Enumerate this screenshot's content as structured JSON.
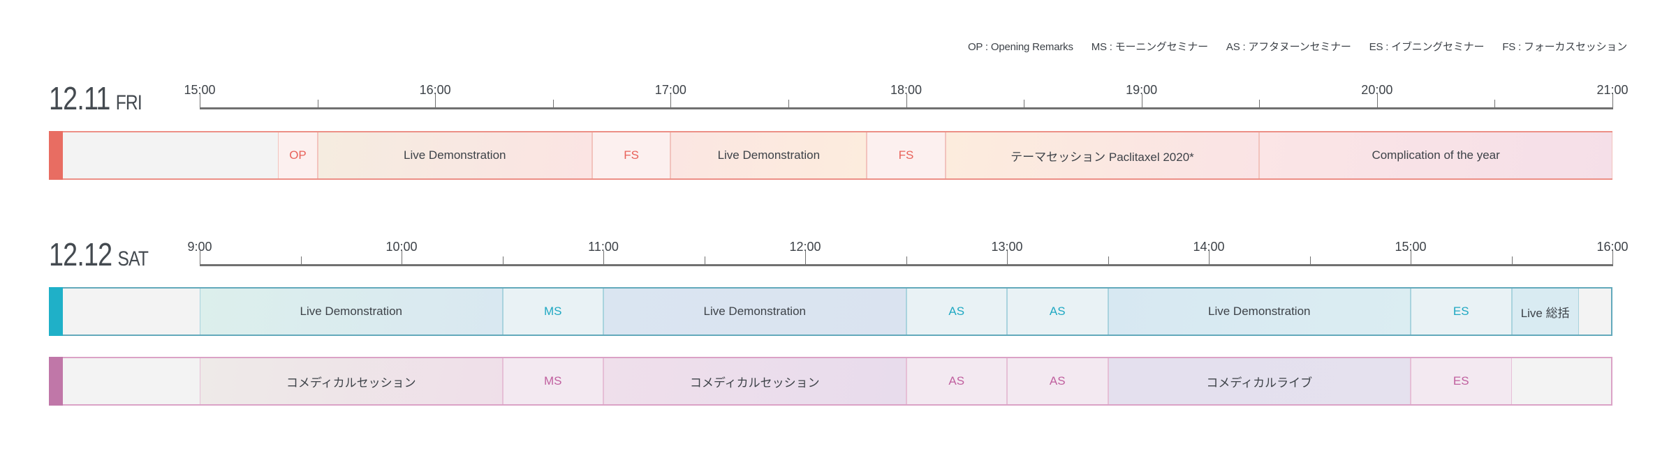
{
  "legend": [
    "OP : Opening Remarks",
    "MS : モーニングセミナー",
    "AS : アフタヌーンセミナー",
    "ES : イブニングセミナー",
    "FS : フォーカスセッション"
  ],
  "days": [
    {
      "date": "12.11",
      "weekday": "FRI",
      "axis": {
        "start": "15:00",
        "end": "21:00",
        "labels": [
          "15:00",
          "16:00",
          "17:00",
          "18:00",
          "19:00",
          "20:00",
          "21:00"
        ]
      },
      "rows": [
        {
          "color": "#e86d62",
          "border": "#ec8f86",
          "sep": "#f2c3bd",
          "abbr_color": "#e8625a",
          "segments": [
            {
              "start": "15:20",
              "end": "15:30",
              "label": "OP",
              "abbr": true,
              "bg": "#fcf0ef"
            },
            {
              "start": "15:30",
              "end": "16:40",
              "label": "Live Demonstration",
              "bg": "linear-gradient(100deg,#f5ece0,#fbe4e3)"
            },
            {
              "start": "16:40",
              "end": "17:00",
              "label": "FS",
              "abbr": true,
              "bg": "#fcf0ef"
            },
            {
              "start": "17:00",
              "end": "17:50",
              "label": "Live Demonstration",
              "bg": "linear-gradient(100deg,#fbe6e2,#fcecdd)"
            },
            {
              "start": "17:50",
              "end": "18:10",
              "label": "FS",
              "abbr": true,
              "bg": "#fcf0ef"
            },
            {
              "start": "18:10",
              "end": "19:30",
              "label": "テーマセッション Paclitaxel 2020*",
              "bg": "linear-gradient(100deg,#fcecdd,#fae3e5)"
            },
            {
              "start": "19:30",
              "end": "21:00",
              "label": "Complication of the year",
              "bg": "linear-gradient(100deg,#fbe5e6,#f5dfe8)"
            }
          ]
        }
      ]
    },
    {
      "date": "12.12",
      "weekday": "SAT",
      "axis": {
        "start": "9:00",
        "end": "16:00",
        "labels": [
          "9:00",
          "10:00",
          "11:00",
          "12:00",
          "13:00",
          "14:00",
          "15:00",
          "16:00"
        ]
      },
      "rows": [
        {
          "color": "#1fb0c8",
          "border": "#62a9bb",
          "sep": "#a9d3de",
          "abbr_color": "#1fa8c2",
          "segments": [
            {
              "start": "9:00",
              "end": "10:30",
              "label": "Live Demonstration",
              "bg": "linear-gradient(100deg,#dcefec,#d9e8f1)"
            },
            {
              "start": "10:30",
              "end": "11:00",
              "label": "MS",
              "abbr": true,
              "bg": "#e9f2f5"
            },
            {
              "start": "11:00",
              "end": "12:30",
              "label": "Live Demonstration",
              "bg": "linear-gradient(100deg,#dae5f1,#dae3f0)"
            },
            {
              "start": "12:30",
              "end": "13:00",
              "label": "AS",
              "abbr": true,
              "bg": "#e9f2f5"
            },
            {
              "start": "13:00",
              "end": "13:30",
              "label": "AS",
              "abbr": true,
              "bg": "#e9f2f5"
            },
            {
              "start": "13:30",
              "end": "15:00",
              "label": "Live Demonstration",
              "bg": "linear-gradient(100deg,#d7e8f2,#dbedf2)"
            },
            {
              "start": "15:00",
              "end": "15:30",
              "label": "ES",
              "abbr": true,
              "bg": "#e9f2f5"
            },
            {
              "start": "15:30",
              "end": "15:50",
              "label": "Live 総括",
              "bg": "#d9ebf2"
            }
          ]
        },
        {
          "color": "#c077a8",
          "border": "#dba2c6",
          "sep": "#e6bfd6",
          "abbr_color": "#c0609f",
          "segments": [
            {
              "start": "9:00",
              "end": "10:30",
              "label": "コメディカルセッション",
              "bg": "linear-gradient(100deg,#eeeae8,#efdfe9)"
            },
            {
              "start": "10:30",
              "end": "11:00",
              "label": "MS",
              "abbr": true,
              "bg": "#f3e9f1"
            },
            {
              "start": "11:00",
              "end": "12:30",
              "label": "コメディカルセッション",
              "bg": "linear-gradient(100deg,#efdfeb,#e8dcec)"
            },
            {
              "start": "12:30",
              "end": "13:00",
              "label": "AS",
              "abbr": true,
              "bg": "#f3e9f1"
            },
            {
              "start": "13:00",
              "end": "13:30",
              "label": "AS",
              "abbr": true,
              "bg": "#f3e9f1"
            },
            {
              "start": "13:30",
              "end": "15:00",
              "label": "コメディカルライブ",
              "bg": "linear-gradient(100deg,#e4e0ee,#e5e1ee)"
            },
            {
              "start": "15:00",
              "end": "15:30",
              "label": "ES",
              "abbr": true,
              "bg": "#f3e9f1"
            }
          ]
        }
      ]
    }
  ]
}
